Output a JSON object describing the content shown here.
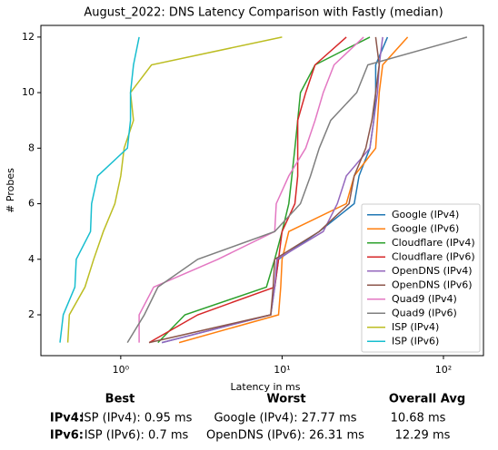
{
  "chart_data": {
    "type": "line",
    "title": "August_2022: DNS Latency Comparison with Fastly (median)",
    "xlabel": "Latency in ms",
    "ylabel": "# Probes",
    "xscale": "log",
    "xlim": [
      0.32,
      177
    ],
    "ylim": [
      0.53,
      12.42
    ],
    "xticks": [
      {
        "value": 1,
        "label": "10⁰"
      },
      {
        "value": 10,
        "label": "10¹"
      },
      {
        "value": 100,
        "label": "10²"
      }
    ],
    "yticks": [
      2,
      4,
      6,
      8,
      10,
      12
    ],
    "legend": "lower right",
    "y": [
      1,
      2,
      3,
      4,
      5,
      6,
      7,
      8,
      9,
      10,
      11,
      12
    ],
    "series": [
      {
        "name": "Google (IPv4)",
        "color": "#1f77b4",
        "x": [
          1.8,
          8.5,
          9,
          9.5,
          17,
          28,
          30,
          35,
          37,
          38,
          38,
          45
        ]
      },
      {
        "name": "Google (IPv6)",
        "color": "#ff7f0e",
        "x": [
          2.3,
          9.5,
          9.8,
          10,
          11,
          25,
          28,
          38,
          39,
          40,
          42,
          60
        ]
      },
      {
        "name": "Cloudflare (IPv4)",
        "color": "#2ca02c",
        "x": [
          1.7,
          2.5,
          8,
          9,
          10,
          11,
          11.5,
          12,
          12.5,
          13,
          16,
          35
        ]
      },
      {
        "name": "Cloudflare (IPv6)",
        "color": "#d62728",
        "x": [
          1.5,
          3,
          9,
          9.5,
          10,
          12,
          12.5,
          12.5,
          12.5,
          14,
          16,
          25
        ]
      },
      {
        "name": "OpenDNS (IPv4)",
        "color": "#9467bd",
        "x": [
          1.8,
          8.5,
          9,
          9.3,
          18,
          22,
          25,
          35,
          37,
          39,
          40,
          42
        ]
      },
      {
        "name": "OpenDNS (IPv6)",
        "color": "#8c564b",
        "x": [
          1.5,
          8.5,
          8.8,
          9,
          17,
          26,
          28,
          33,
          36,
          38,
          40,
          38
        ]
      },
      {
        "name": "Quad9 (IPv4)",
        "color": "#e377c2",
        "x": [
          1.3,
          1.3,
          1.6,
          4,
          9,
          9.2,
          11,
          14,
          16,
          18,
          21,
          32
        ]
      },
      {
        "name": "Quad9 (IPv6)",
        "color": "#7f7f7f",
        "x": [
          1.1,
          1.4,
          1.7,
          3,
          9,
          13,
          15,
          17,
          20,
          29,
          34,
          140
        ]
      },
      {
        "name": "ISP (IPv4)",
        "color": "#bcbd22",
        "x": [
          0.47,
          0.48,
          0.6,
          0.68,
          0.78,
          0.92,
          1.0,
          1.05,
          1.2,
          1.15,
          1.55,
          10
        ]
      },
      {
        "name": "ISP (IPv6)",
        "color": "#17becf",
        "x": [
          0.42,
          0.44,
          0.52,
          0.53,
          0.65,
          0.66,
          0.72,
          1.1,
          1.15,
          1.15,
          1.2,
          1.3
        ]
      }
    ]
  },
  "summary": {
    "headers": [
      "Best",
      "Worst",
      "Overall Avg"
    ],
    "rows": [
      [
        "IPv4:",
        "ISP (IPv4): 0.95 ms",
        "Google (IPv4): 27.77 ms",
        "10.68 ms"
      ],
      [
        "IPv6:",
        "ISP (IPv6): 0.7 ms",
        "OpenDNS (IPv6): 26.31 ms",
        "12.29 ms"
      ]
    ]
  }
}
